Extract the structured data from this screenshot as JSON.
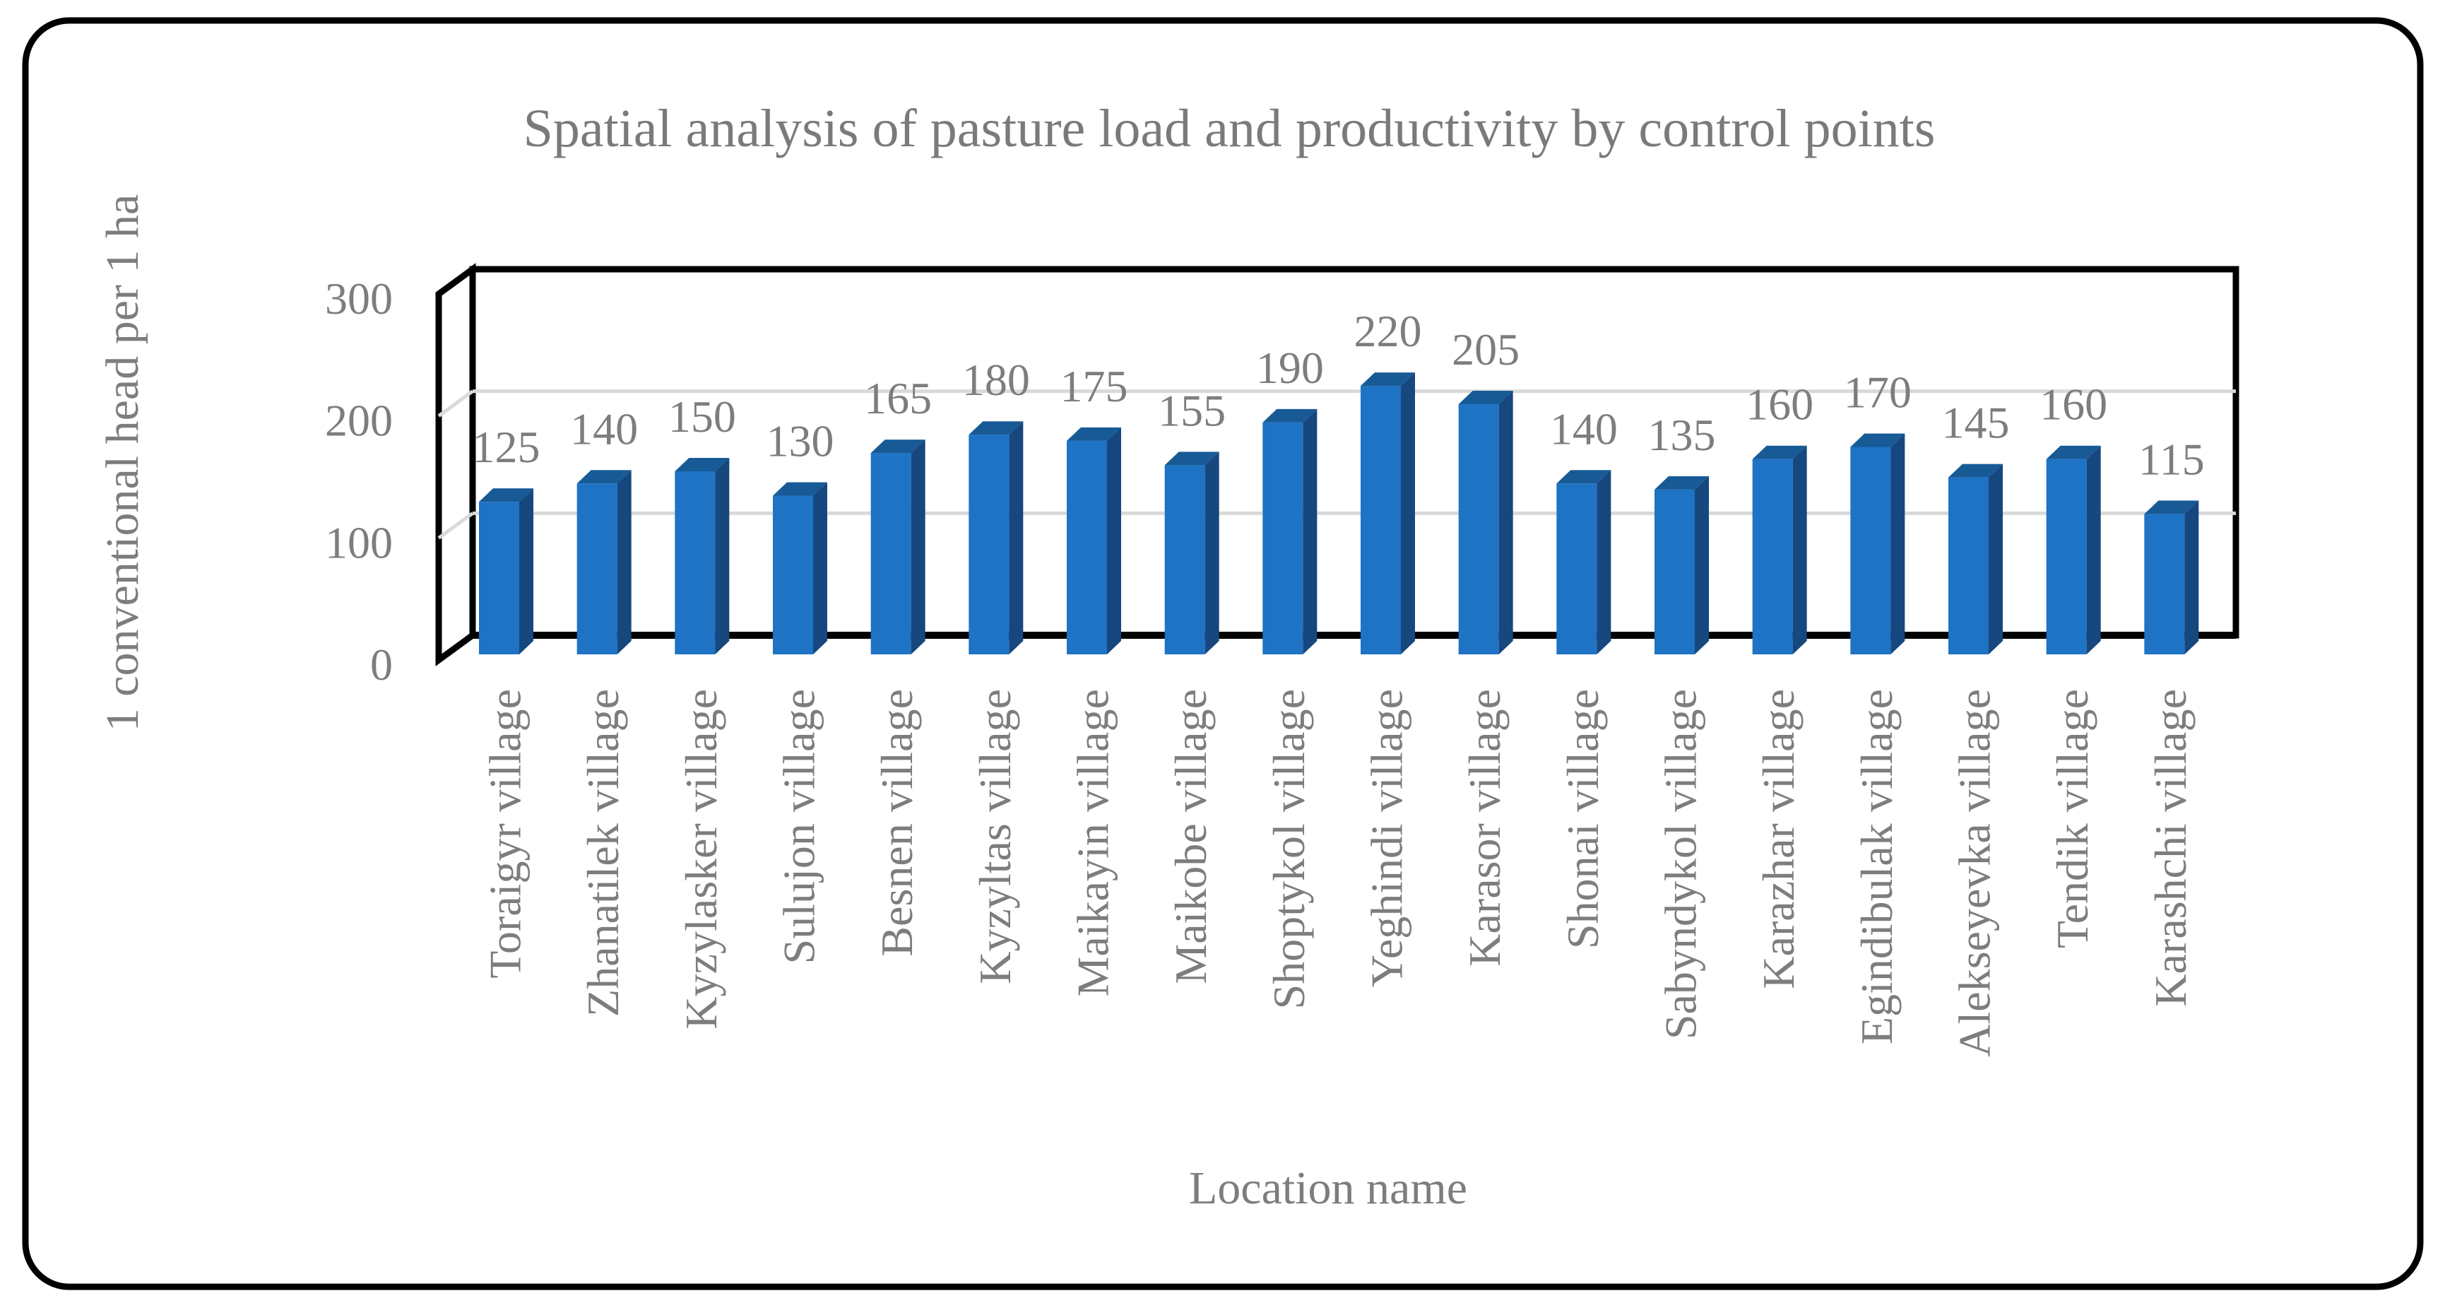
{
  "chart_data": {
    "type": "bar",
    "style": "3d-column",
    "title": "Spatial analysis of pasture load and productivity by control points",
    "xlabel": "Location name",
    "ylabel": "1 conventional head per 1 ha",
    "categories": [
      "Toraigyr village",
      "Zhanatilek village",
      "Kyzylasker village",
      "Sulujon village",
      "Besnen village",
      "Kyzyltas village",
      "Maikayin village",
      "Maikobe village",
      "Shoptykol village",
      "Yeghindi village",
      "Karasor village",
      "Shonai village",
      "Sabyndykol village",
      "Karazhar village",
      "Egindibulak village",
      "Alekseyevka village",
      "Tendik village",
      "Karashchi village"
    ],
    "values": [
      125,
      140,
      150,
      130,
      165,
      180,
      175,
      155,
      190,
      220,
      205,
      140,
      135,
      160,
      170,
      145,
      160,
      115
    ],
    "ylim": [
      0,
      300
    ],
    "yticks": [
      0,
      100,
      200,
      300
    ],
    "grid": "horizontal gridlines at 100 and 200",
    "legend_position": "none",
    "data_labels": "outside end, above each column",
    "colors": {
      "bar_front": "#1E73C5",
      "bar_side": "#16477E",
      "bar_top": "#175A96",
      "text_gray": "#7D7D7D",
      "gridline": "#D9D9D9",
      "frame": "#000000",
      "background": "#FFFFFF"
    }
  }
}
